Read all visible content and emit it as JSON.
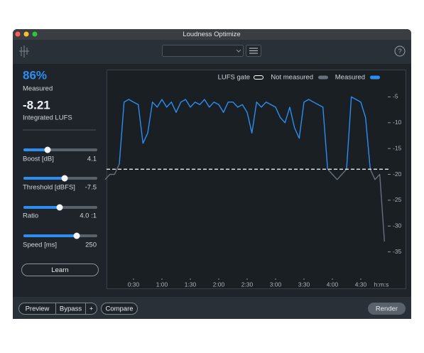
{
  "window": {
    "title": "Loudness Optimize"
  },
  "toolbar": {
    "help": "?"
  },
  "sidebar": {
    "percent": "86%",
    "percent_label": "Measured",
    "lufs": "-8.21",
    "lufs_label": "Integrated LUFS",
    "sliders": [
      {
        "label": "Boost [dB]",
        "value": "4.1"
      },
      {
        "label": "Threshold [dBFS]",
        "value": "-7.5"
      },
      {
        "label": "Ratio",
        "value": "4.0 :1"
      },
      {
        "label": "Speed [ms]",
        "value": "250"
      }
    ],
    "learn": "Learn"
  },
  "footer": {
    "buttons": [
      "Preview",
      "Bypass",
      "+",
      "Compare"
    ],
    "render": "Render"
  },
  "chart_data": {
    "type": "line",
    "x_label": "h:m:s",
    "gate_label": "LUFS gate",
    "gate": -19,
    "x": [
      0,
      5,
      10,
      15,
      20,
      25,
      30,
      35,
      40,
      45,
      50,
      55,
      60,
      65,
      70,
      75,
      80,
      85,
      90,
      95,
      100,
      105,
      110,
      115,
      120,
      125,
      130,
      135,
      140,
      145,
      150,
      155,
      160,
      165,
      170,
      175,
      180,
      185,
      190,
      195,
      200,
      205,
      210,
      215,
      220,
      225,
      230,
      235,
      240,
      245,
      250,
      255,
      260,
      265,
      270,
      275,
      280,
      285,
      290,
      295
    ],
    "series": [
      {
        "name": "Not measured",
        "color": "#66717d",
        "values": [
          -21,
          -20,
          -20,
          -18,
          null,
          null,
          null,
          null,
          null,
          null,
          null,
          null,
          null,
          null,
          null,
          null,
          null,
          null,
          null,
          null,
          null,
          null,
          null,
          null,
          null,
          null,
          null,
          null,
          null,
          null,
          null,
          null,
          null,
          null,
          null,
          null,
          null,
          null,
          null,
          null,
          null,
          null,
          null,
          null,
          null,
          null,
          null,
          -19,
          -20,
          -21,
          -20,
          -19,
          null,
          null,
          null,
          null,
          -19,
          -21,
          -20,
          -33
        ]
      },
      {
        "name": "Measured",
        "color": "#2b8ef0",
        "values": [
          null,
          null,
          null,
          -18,
          -6,
          -5.5,
          -6,
          -6.5,
          -14,
          -12,
          -6,
          -7,
          -5.5,
          -7,
          -6,
          -8,
          -6,
          -5.5,
          -7,
          -6,
          -6.5,
          -5.5,
          -7,
          -6,
          -6.5,
          -8,
          -6,
          -6,
          -7,
          -6.5,
          -8,
          -12,
          -6,
          -7,
          -6,
          -6.5,
          -7,
          -9,
          -10,
          -7,
          -11,
          -13,
          -6,
          -5.5,
          -6,
          -6.5,
          -7,
          -19,
          null,
          null,
          null,
          -19,
          -5,
          -5.5,
          -6,
          -9,
          -19,
          null,
          null,
          null
        ]
      }
    ],
    "xlim": [
      0,
      300
    ],
    "xticks": [
      {
        "value": 30,
        "label": "0:30"
      },
      {
        "value": 60,
        "label": "1:00"
      },
      {
        "value": 90,
        "label": "1:30"
      },
      {
        "value": 120,
        "label": "2:00"
      },
      {
        "value": 150,
        "label": "2:30"
      },
      {
        "value": 180,
        "label": "3:00"
      },
      {
        "value": 210,
        "label": "3:30"
      },
      {
        "value": 240,
        "label": "4:00"
      },
      {
        "value": 270,
        "label": "4:30"
      }
    ],
    "ylim": [
      -40,
      0
    ],
    "yticks": [
      -5,
      -10,
      -15,
      -20,
      -25,
      -30,
      -35
    ],
    "gate_color": "#ffffff"
  }
}
